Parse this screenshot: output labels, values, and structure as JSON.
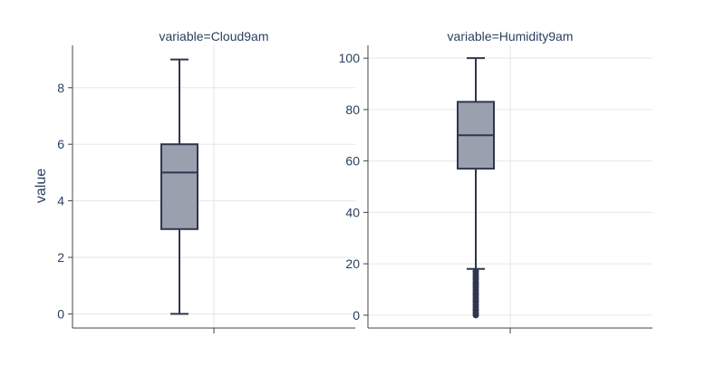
{
  "chart_data": {
    "type": "box",
    "ylabel": "value",
    "grid": true,
    "facets": [
      {
        "title": "variable=Cloud9am",
        "ylim": [
          -0.5,
          9.5
        ],
        "yticks": [
          0,
          2,
          4,
          6,
          8
        ],
        "box": {
          "min": 0,
          "q1": 3,
          "median": 5,
          "q3": 6,
          "max": 9
        },
        "outliers": []
      },
      {
        "title": "variable=Humidity9am",
        "ylim": [
          -5,
          105
        ],
        "yticks": [
          0,
          20,
          40,
          60,
          80,
          100
        ],
        "box": {
          "min": 18,
          "q1": 57,
          "median": 70,
          "q3": 83,
          "max": 100
        },
        "outliers": [
          0,
          1,
          2,
          3,
          4,
          5,
          6,
          7,
          8,
          9,
          10,
          11,
          12,
          13,
          14,
          15,
          16,
          17
        ]
      }
    ],
    "colors": {
      "box_fill": "#9aa0ad",
      "box_line": "#2f3650",
      "grid": "#e6e6e6",
      "axis": "#444444"
    }
  }
}
